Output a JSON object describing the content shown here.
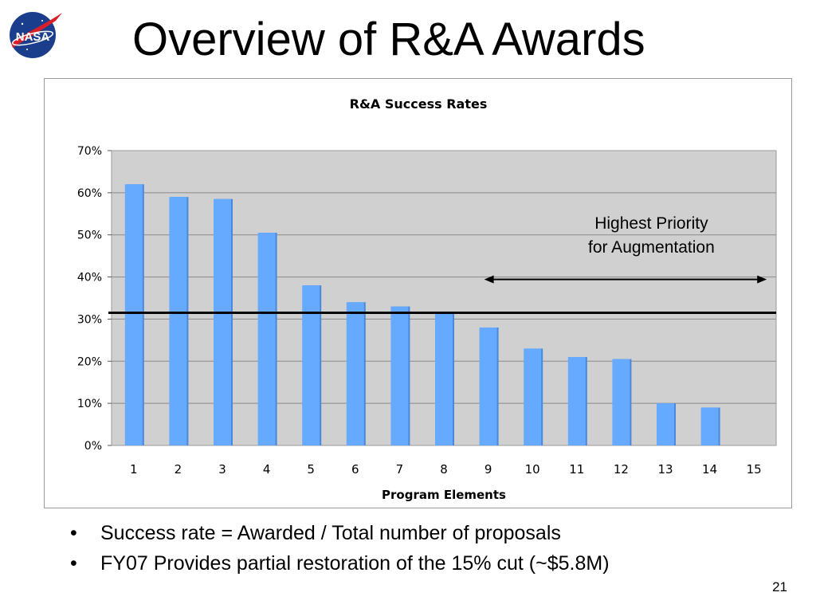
{
  "slide": {
    "title": "Overview of R&A Awards",
    "logo_text": "NASA",
    "bullets": [
      "Success rate = Awarded / Total number of proposals",
      "FY07 Provides partial restoration of the 15% cut (~$5.8M)"
    ],
    "page_number": "21"
  },
  "chart_data": {
    "type": "bar",
    "title": "R&A Success Rates",
    "xlabel": "Program Elements",
    "ylabel": "",
    "categories": [
      "1",
      "2",
      "3",
      "4",
      "5",
      "6",
      "7",
      "8",
      "9",
      "10",
      "11",
      "12",
      "13",
      "14",
      "15"
    ],
    "values": [
      62,
      59,
      58.5,
      50.5,
      38,
      34,
      33,
      31.5,
      28,
      23,
      21,
      20.5,
      10,
      9,
      0
    ],
    "ylim": [
      0,
      70
    ],
    "yticks": [
      "0%",
      "10%",
      "20%",
      "30%",
      "40%",
      "50%",
      "60%",
      "70%"
    ],
    "grid": true,
    "reference_line": 31.5,
    "annotation": {
      "lines": [
        "Highest Priority",
        "for Augmentation"
      ],
      "arrow_from_category": "9",
      "arrow_to_category": "15"
    },
    "colors": {
      "bar": "#66aaff",
      "bar_edge": "#4a88dd",
      "plot_bg": "#d0d0d0",
      "grid": "#8a8a8a"
    }
  }
}
